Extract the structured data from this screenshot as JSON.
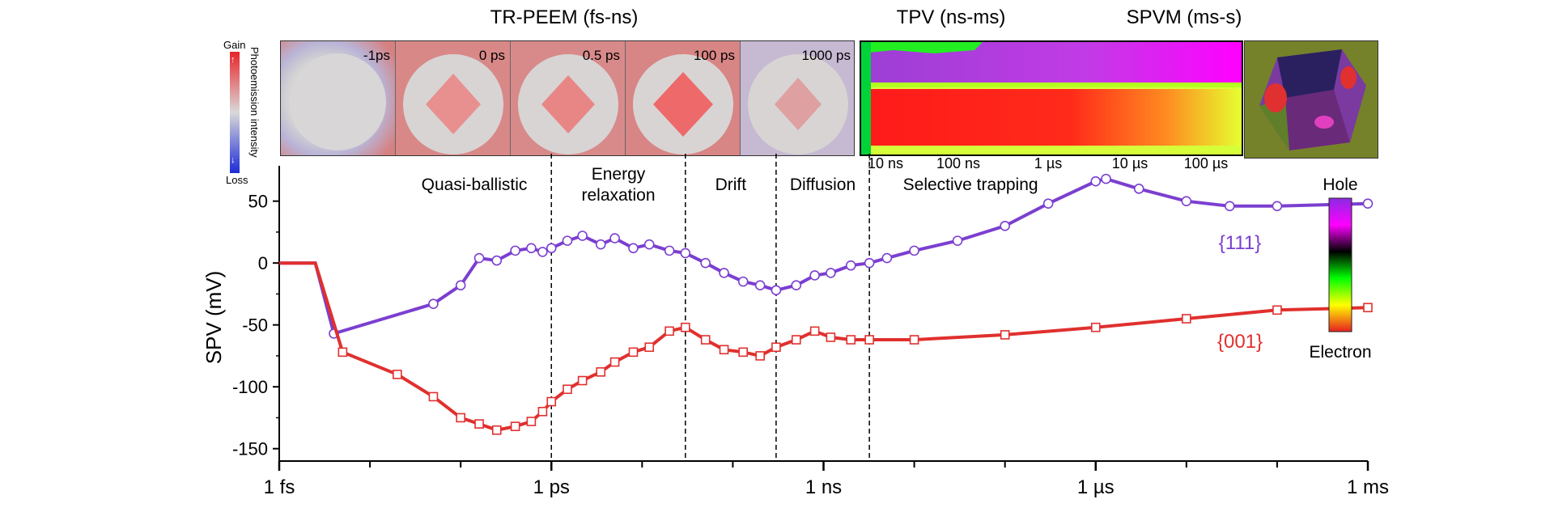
{
  "panels": {
    "tr_peem": {
      "title": "TR-PEEM (fs-ns)",
      "frames": [
        "-1ps",
        "0 ps",
        "0.5 ps",
        "100 ps",
        "1000 ps"
      ],
      "colorbar": {
        "top_label": "Gain",
        "bottom_label": "Loss",
        "axis_label": "Photoemission intensity",
        "top_color": "#e8252a",
        "mid_color": "#d9d9d9",
        "bottom_color": "#1d2bd6"
      }
    },
    "tpv": {
      "title": "TPV (ns-ms)",
      "ticks": [
        "10 ns",
        "100 ns",
        "1 µs",
        "10 µs",
        "100 µs"
      ]
    },
    "spvm": {
      "title": "SPVM (ms-s)"
    }
  },
  "chart_data": {
    "type": "scatter",
    "ylabel": "SPV (mV)",
    "xlabel": "",
    "x_scale": "log",
    "x_unit": "s",
    "xlim": [
      1e-15,
      0.001
    ],
    "ylim": [
      -160,
      72
    ],
    "yticks": [
      50,
      0,
      -50,
      -100,
      -150
    ],
    "xtick_labels": [
      {
        "x": 1e-15,
        "label": "1 fs"
      },
      {
        "x": 1e-12,
        "label": "1 ps"
      },
      {
        "x": 1e-09,
        "label": "1 ns"
      },
      {
        "x": 1e-06,
        "label": "1 µs"
      },
      {
        "x": 0.001,
        "label": "1 ms"
      }
    ],
    "regions": [
      {
        "label": "Quasi-ballistic",
        "from": 2e-14,
        "to": 1e-12
      },
      {
        "label": "Energy relaxation",
        "from": 1e-12,
        "to": 3e-11
      },
      {
        "label": "Drift",
        "from": 3e-11,
        "to": 3e-10
      },
      {
        "label": "Diffusion",
        "from": 3e-10,
        "to": 3.2e-09
      },
      {
        "label": "Selective trapping",
        "from": 3.2e-09,
        "to": 0.001
      }
    ],
    "region_boundaries": [
      1e-12,
      3e-11,
      3e-10,
      3.2e-09
    ],
    "series": [
      {
        "name": "{111}",
        "color": "#7b3fd0",
        "marker": "circle",
        "x": [
          1e-15,
          2.5e-15,
          4e-15,
          5e-14,
          1e-13,
          1.6e-13,
          2.5e-13,
          4e-13,
          6e-13,
          8e-13,
          1e-12,
          1.5e-12,
          2.2e-12,
          3.5e-12,
          5e-12,
          8e-12,
          1.2e-11,
          2e-11,
          3e-11,
          5e-11,
          8e-11,
          1.3e-10,
          2e-10,
          3e-10,
          5e-10,
          8e-10,
          1.2e-09,
          2e-09,
          3.2e-09,
          5e-09,
          1e-08,
          3e-08,
          1e-07,
          3e-07,
          1e-06,
          1.3e-06,
          3e-06,
          1e-05,
          3e-05,
          0.0001,
          0.001
        ],
        "y": [
          0,
          0,
          -57,
          -33,
          -18,
          4,
          2,
          10,
          12,
          9,
          12,
          18,
          22,
          15,
          20,
          12,
          15,
          10,
          8,
          0,
          -8,
          -15,
          -18,
          -22,
          -18,
          -10,
          -8,
          -2,
          0,
          4,
          10,
          18,
          30,
          48,
          66,
          68,
          60,
          50,
          46,
          46,
          48
        ]
      },
      {
        "name": "{001}",
        "color": "#e0302e",
        "marker": "square",
        "x": [
          1e-15,
          2.5e-15,
          5e-15,
          2e-14,
          5e-14,
          1e-13,
          1.6e-13,
          2.5e-13,
          4e-13,
          6e-13,
          8e-13,
          1e-12,
          1.5e-12,
          2.2e-12,
          3.5e-12,
          5e-12,
          8e-12,
          1.2e-11,
          2e-11,
          3e-11,
          5e-11,
          8e-11,
          1.3e-10,
          2e-10,
          3e-10,
          5e-10,
          8e-10,
          1.2e-09,
          2e-09,
          3.2e-09,
          1e-08,
          1e-07,
          1e-06,
          1e-05,
          0.0001,
          0.001
        ],
        "y": [
          0,
          0,
          -72,
          -90,
          -108,
          -125,
          -130,
          -135,
          -132,
          -128,
          -120,
          -112,
          -102,
          -95,
          -88,
          -80,
          -72,
          -68,
          -55,
          -52,
          -62,
          -70,
          -72,
          -75,
          -68,
          -62,
          -55,
          -60,
          -62,
          -62,
          -62,
          -58,
          -52,
          -45,
          -38,
          -36
        ]
      }
    ],
    "legend": [
      {
        "label": "{111}",
        "color": "#7b3fd0"
      },
      {
        "label": "{001}",
        "color": "#e0302e"
      }
    ],
    "colorbar": {
      "top_label": "Hole",
      "bottom_label": "Electron",
      "colors": [
        "#e62020",
        "#ffff00",
        "#00ff00",
        "#000000",
        "#ff00ff",
        "#8a2be2"
      ]
    }
  }
}
